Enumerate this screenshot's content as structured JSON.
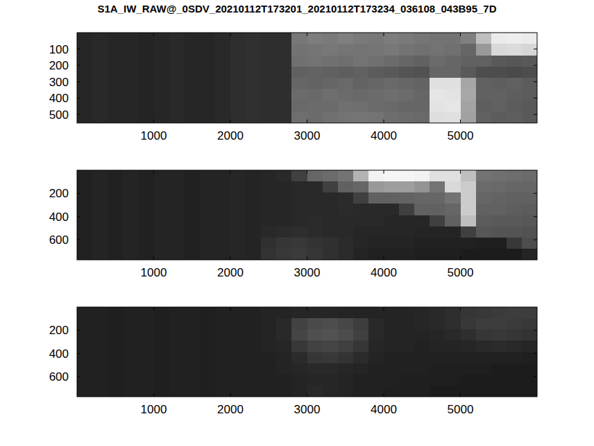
{
  "chart_data": [
    {
      "type": "heatmap",
      "title": "S1A_IW_RAW@_0SDV_20210112T173201_20210112T173234_036108_043B95_7D",
      "xlim": [
        0,
        6000
      ],
      "xticks": [
        1000,
        2000,
        3000,
        4000,
        5000
      ],
      "ylim": [
        0,
        552
      ],
      "yticks": [
        100,
        200,
        300,
        400,
        500
      ],
      "zlim": [
        0,
        100
      ],
      "z": [
        [
          15,
          16,
          15,
          15,
          14,
          15,
          16,
          15,
          15,
          16,
          18,
          19,
          18,
          18,
          47,
          49,
          48,
          50,
          48,
          47,
          49,
          48,
          46,
          45,
          45,
          50,
          75,
          92,
          93,
          92
        ],
        [
          15,
          16,
          15,
          15,
          14,
          15,
          16,
          15,
          15,
          16,
          18,
          19,
          18,
          18,
          45,
          46,
          47,
          46,
          45,
          46,
          47,
          45,
          44,
          45,
          44,
          40,
          60,
          85,
          86,
          84
        ],
        [
          15,
          16,
          15,
          15,
          14,
          15,
          16,
          15,
          15,
          16,
          18,
          19,
          18,
          18,
          44,
          45,
          44,
          43,
          45,
          44,
          42,
          40,
          38,
          42,
          40,
          38,
          38,
          35,
          34,
          35
        ],
        [
          15,
          16,
          15,
          15,
          14,
          15,
          16,
          15,
          15,
          16,
          18,
          19,
          18,
          18,
          38,
          39,
          38,
          37,
          38,
          36,
          35,
          33,
          32,
          40,
          40,
          35,
          30,
          30,
          29,
          30
        ],
        [
          15,
          16,
          15,
          15,
          14,
          15,
          16,
          15,
          15,
          16,
          18,
          19,
          18,
          18,
          40,
          39,
          40,
          41,
          39,
          40,
          41,
          40,
          39,
          88,
          88,
          65,
          38,
          37,
          38,
          36
        ],
        [
          15,
          16,
          15,
          15,
          14,
          15,
          16,
          15,
          15,
          16,
          18,
          19,
          18,
          18,
          42,
          41,
          43,
          42,
          41,
          42,
          43,
          42,
          40,
          90,
          89,
          66,
          38,
          38,
          37,
          36
        ],
        [
          15,
          16,
          15,
          15,
          14,
          15,
          16,
          15,
          15,
          16,
          18,
          19,
          18,
          18,
          41,
          42,
          42,
          44,
          43,
          42,
          41,
          40,
          40,
          89,
          90,
          64,
          37,
          38,
          36,
          35
        ],
        [
          15,
          16,
          15,
          15,
          14,
          15,
          16,
          15,
          15,
          16,
          18,
          19,
          18,
          18,
          43,
          42,
          44,
          45,
          46,
          45,
          43,
          42,
          41,
          87,
          88,
          63,
          38,
          36,
          37,
          35
        ]
      ]
    },
    {
      "type": "heatmap",
      "xlim": [
        0,
        6000
      ],
      "xticks": [
        1000,
        2000,
        3000,
        4000,
        5000
      ],
      "ylim": [
        0,
        773
      ],
      "yticks": [
        200,
        400,
        600
      ],
      "zlim": [
        0,
        100
      ],
      "z": [
        [
          13,
          14,
          13,
          14,
          13,
          14,
          14,
          13,
          14,
          14,
          15,
          14,
          15,
          16,
          25,
          40,
          42,
          45,
          70,
          95,
          96,
          96,
          95,
          88,
          88,
          75,
          45,
          44,
          43,
          42
        ],
        [
          13,
          14,
          13,
          14,
          13,
          14,
          14,
          13,
          14,
          14,
          15,
          14,
          15,
          15,
          16,
          16,
          25,
          38,
          40,
          60,
          62,
          62,
          58,
          45,
          85,
          80,
          42,
          41,
          40,
          40
        ],
        [
          13,
          14,
          13,
          14,
          13,
          14,
          14,
          13,
          14,
          14,
          15,
          14,
          15,
          15,
          16,
          16,
          16,
          17,
          25,
          38,
          38,
          39,
          40,
          40,
          45,
          80,
          40,
          39,
          38,
          38
        ],
        [
          13,
          14,
          13,
          14,
          13,
          14,
          14,
          13,
          14,
          14,
          15,
          14,
          15,
          15,
          16,
          16,
          16,
          17,
          16,
          16,
          16,
          25,
          38,
          38,
          40,
          80,
          38,
          38,
          37,
          36
        ],
        [
          13,
          14,
          13,
          14,
          13,
          14,
          14,
          13,
          14,
          14,
          15,
          14,
          15,
          15,
          16,
          17,
          16,
          16,
          16,
          16,
          15,
          15,
          15,
          25,
          38,
          75,
          36,
          35,
          35,
          34
        ],
        [
          13,
          14,
          13,
          14,
          13,
          14,
          14,
          13,
          14,
          14,
          15,
          14,
          16,
          17,
          18,
          17,
          16,
          16,
          15,
          15,
          15,
          15,
          14,
          14,
          14,
          25,
          34,
          33,
          33,
          32
        ],
        [
          13,
          14,
          13,
          14,
          13,
          14,
          14,
          13,
          14,
          14,
          15,
          14,
          19,
          21,
          22,
          20,
          19,
          17,
          15,
          14,
          14,
          14,
          13,
          13,
          13,
          13,
          12,
          12,
          22,
          30
        ],
        [
          13,
          14,
          13,
          14,
          13,
          14,
          14,
          13,
          14,
          14,
          15,
          14,
          20,
          22,
          23,
          21,
          19,
          17,
          14,
          13,
          13,
          13,
          12,
          12,
          12,
          11,
          11,
          11,
          11,
          14
        ]
      ]
    },
    {
      "type": "heatmap",
      "xlim": [
        0,
        6000
      ],
      "xticks": [
        1000,
        2000,
        3000,
        4000,
        5000
      ],
      "ylim": [
        0,
        773
      ],
      "yticks": [
        200,
        400,
        600
      ],
      "zlim": [
        0,
        100
      ],
      "z": [
        [
          13,
          13,
          12,
          13,
          13,
          12,
          13,
          13,
          12,
          13,
          13,
          13,
          14,
          14,
          15,
          15,
          15,
          14,
          14,
          14,
          14,
          14,
          15,
          16,
          18,
          21,
          22,
          23,
          24,
          24
        ],
        [
          13,
          13,
          12,
          13,
          13,
          12,
          13,
          13,
          12,
          13,
          13,
          13,
          14,
          16,
          26,
          29,
          30,
          28,
          24,
          16,
          14,
          14,
          15,
          16,
          18,
          22,
          24,
          24,
          23,
          22
        ],
        [
          13,
          13,
          12,
          13,
          13,
          12,
          13,
          13,
          12,
          13,
          13,
          13,
          14,
          16,
          27,
          31,
          32,
          30,
          25,
          16,
          14,
          14,
          14,
          15,
          16,
          18,
          21,
          22,
          21,
          20
        ],
        [
          13,
          13,
          12,
          13,
          13,
          12,
          13,
          13,
          12,
          13,
          13,
          13,
          14,
          15,
          22,
          26,
          27,
          25,
          21,
          15,
          14,
          14,
          13,
          14,
          14,
          15,
          16,
          17,
          16,
          15
        ],
        [
          13,
          13,
          12,
          13,
          13,
          12,
          13,
          13,
          12,
          13,
          13,
          13,
          13,
          14,
          17,
          21,
          22,
          20,
          17,
          14,
          13,
          13,
          13,
          13,
          13,
          13,
          13,
          13,
          13,
          12
        ],
        [
          13,
          13,
          12,
          13,
          13,
          12,
          13,
          13,
          12,
          13,
          13,
          13,
          13,
          14,
          15,
          16,
          16,
          15,
          14,
          13,
          13,
          13,
          13,
          12,
          12,
          12,
          12,
          11,
          11,
          11
        ],
        [
          13,
          13,
          12,
          13,
          13,
          12,
          13,
          13,
          12,
          13,
          13,
          13,
          13,
          13,
          14,
          15,
          15,
          14,
          13,
          13,
          13,
          12,
          12,
          12,
          12,
          11,
          11,
          11,
          11,
          11
        ],
        [
          13,
          13,
          12,
          13,
          13,
          12,
          13,
          13,
          12,
          13,
          13,
          13,
          13,
          13,
          14,
          16,
          15,
          14,
          13,
          13,
          12,
          12,
          12,
          11,
          11,
          11,
          11,
          11,
          11,
          11
        ]
      ]
    }
  ]
}
